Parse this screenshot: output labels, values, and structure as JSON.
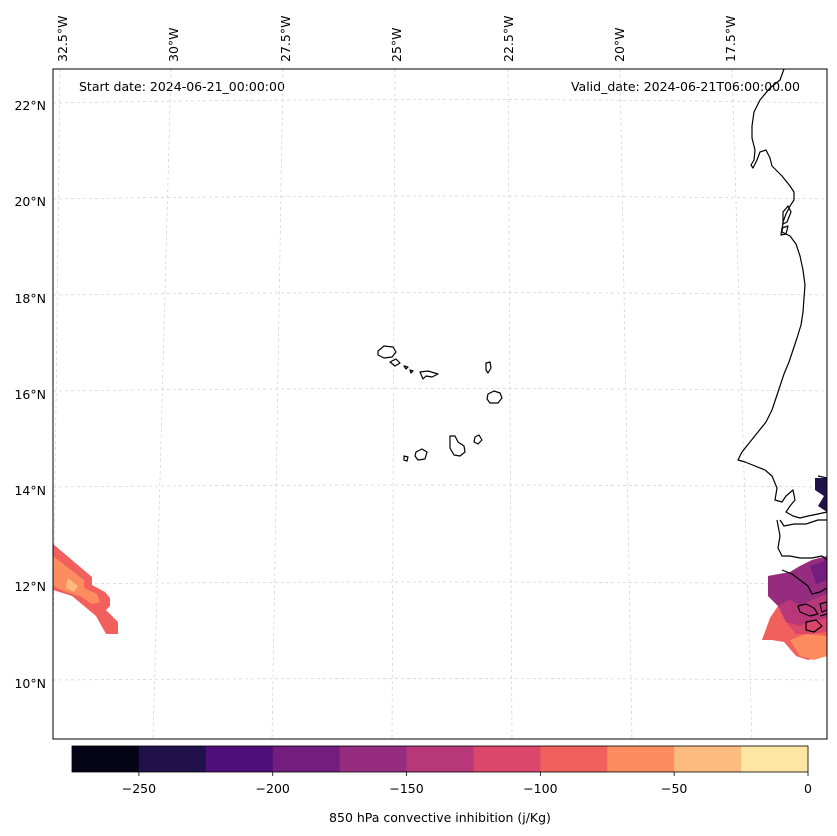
{
  "header": {
    "start_date": "Start date: 2024-06-21_00:00:00",
    "valid_date": "Valid_date: 2024-06-21T06:00:00.00"
  },
  "map": {
    "lon_labels": [
      "32.5°W",
      "30°W",
      "27.5°W",
      "25°W",
      "22.5°W",
      "20°W",
      "17.5°W"
    ],
    "lat_labels": [
      "22°N",
      "20°N",
      "18°N",
      "16°N",
      "14°N",
      "12°N",
      "10°N"
    ],
    "gridlines": true,
    "gridline_style": "dashed light grey"
  },
  "colorbar": {
    "label": "850 hPa convective inhibition (j/Kg)",
    "tick_labels": [
      "−250",
      "−200",
      "−150",
      "−100",
      "−50",
      "0"
    ],
    "levels": [
      -275,
      -250,
      -225,
      -200,
      -175,
      -150,
      -125,
      -100,
      -75,
      -50,
      -25,
      0
    ],
    "colors": [
      "#050417",
      "#20114b",
      "#4f0f7b",
      "#731e7f",
      "#952c80",
      "#b83779",
      "#db476a",
      "#f1605d",
      "#fd8d5f",
      "#febb80",
      "#fde6a4"
    ],
    "colormap": "magma"
  },
  "map_colors": {
    "coastline": "#000000",
    "grid": "#cccccc",
    "frame": "#000000"
  }
}
